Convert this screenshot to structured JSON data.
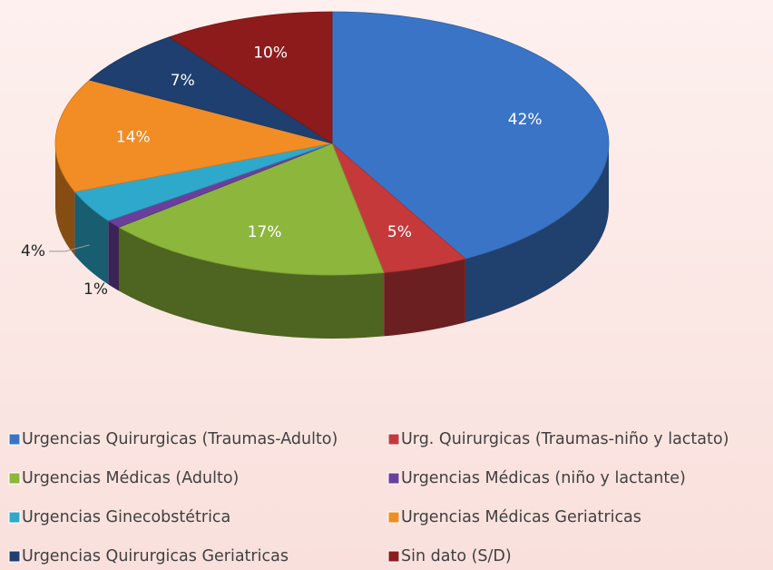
{
  "chart_data": {
    "type": "pie",
    "categories": [
      "Urgencias Quirurgicas (Traumas-Adulto)",
      "Urg. Quirurgicas (Traumas-niño y lactato)",
      "Urgencias Médicas (Adulto)",
      "Urgencias Médicas (niño y lactante)",
      "Urgencias Ginecobstétrica",
      "Urgencias Médicas Geriatricas",
      "Urgencias Quirurgicas Geriatricas",
      "Sin dato  (S/D)"
    ],
    "values": [
      42,
      5,
      17,
      1,
      4,
      14,
      7,
      10
    ],
    "value_labels": [
      "42%",
      "5%",
      "17%",
      "1%",
      "4%",
      "14%",
      "7%",
      "10%"
    ],
    "colors": [
      "#3a74c6",
      "#c5393b",
      "#8db63c",
      "#6a3f9c",
      "#2ea9cb",
      "#f28c25",
      "#1f3f70",
      "#8e1b1c"
    ],
    "legend": "bottom"
  }
}
